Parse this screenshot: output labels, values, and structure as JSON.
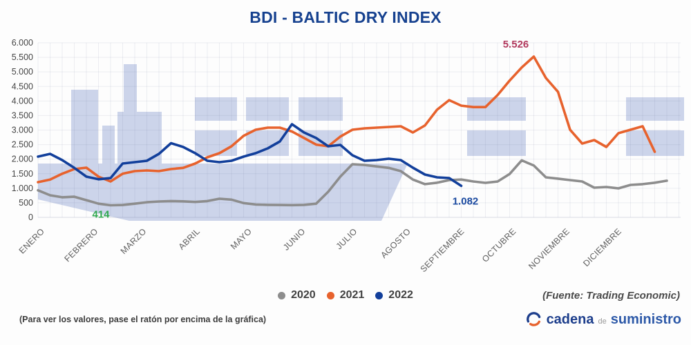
{
  "header": {
    "title": "BDI - BALTIC DRY INDEX"
  },
  "chart_data": {
    "type": "line",
    "title": "BDI - BALTIC DRY INDEX",
    "x_axis": {
      "unit": "weeks",
      "months": [
        "ENERO",
        "FEBRERO",
        "MARZO",
        "ABRIL",
        "MAYO",
        "JUNIO",
        "JULIO",
        "AGOSTO",
        "SEPTIEMBRE",
        "OCTUBRE",
        "NOVIEMBRE",
        "DICIEMBRE"
      ]
    },
    "y_axis": {
      "min": 0,
      "max": 6000,
      "tick_step": 500,
      "tick_labels": [
        "0",
        "500",
        "1.000",
        "1.500",
        "2.000",
        "2.500",
        "3.000",
        "3.500",
        "4.000",
        "4.500",
        "5.000",
        "5.500",
        "6.000"
      ]
    },
    "grid": true,
    "legend_position": "bottom-center",
    "series": [
      {
        "name": "2020",
        "color": "#8d8d8d",
        "start_week": 0,
        "values": [
          930,
          760,
          690,
          710,
          590,
          470,
          414,
          425,
          470,
          520,
          545,
          560,
          550,
          530,
          560,
          640,
          610,
          490,
          440,
          430,
          425,
          420,
          430,
          470,
          880,
          1400,
          1826,
          1800,
          1750,
          1700,
          1590,
          1300,
          1140,
          1190,
          1280,
          1300,
          1233,
          1186,
          1230,
          1490,
          1960,
          1780,
          1375,
          1330,
          1280,
          1233,
          1020,
          1044,
          996,
          1114,
          1140,
          1190,
          1260
        ]
      },
      {
        "name": "2021",
        "color": "#e7622d",
        "start_week": 0,
        "values": [
          1209,
          1300,
          1500,
          1660,
          1707,
          1400,
          1233,
          1500,
          1589,
          1613,
          1589,
          1660,
          1700,
          1850,
          2063,
          2205,
          2442,
          2800,
          3011,
          3082,
          3082,
          2950,
          2727,
          2500,
          2442,
          2774,
          3011,
          3060,
          3082,
          3106,
          3130,
          2917,
          3160,
          3700,
          4030,
          3840,
          3790,
          3790,
          4200,
          4700,
          5150,
          5526,
          4790,
          4315,
          3010,
          2537,
          2656,
          2418,
          2893,
          3011,
          3130,
          2253
        ]
      },
      {
        "name": "2022",
        "color": "#123f9b",
        "start_week": 0,
        "values": [
          2087,
          2182,
          1968,
          1700,
          1400,
          1310,
          1350,
          1850,
          1898,
          1944,
          2182,
          2550,
          2418,
          2205,
          1944,
          1898,
          1944,
          2086,
          2205,
          2371,
          2608,
          3201,
          2917,
          2727,
          2442,
          2490,
          2134,
          1944,
          1968,
          2016,
          1968,
          1707,
          1470,
          1375,
          1352,
          1082
        ]
      }
    ],
    "annotations": [
      {
        "text": "5.526",
        "value": 5526,
        "series": "2021",
        "anchor": "max",
        "color": "#b23a5e"
      },
      {
        "text": "414",
        "value": 414,
        "series": "2020",
        "anchor": "min",
        "color": "#2fa84e"
      },
      {
        "text": "1.082",
        "value": 1082,
        "series": "2022",
        "anchor": "last",
        "color": "#1b4aa0"
      }
    ]
  },
  "footer": {
    "source_note": "(Fuente: Trading Economic)",
    "hover_note": "(Para ver los valores, pase el ratón por encima de la gráfica)",
    "logo": {
      "word1": "cadena",
      "word2": "de",
      "word3": "suministro"
    }
  },
  "colors": {
    "title": "#16418f",
    "watermark": "#ccd4ea",
    "axis_text": "#5f5f5f",
    "y_axis_text": "#444444",
    "gridline": "rgba(90,100,140,0.10)",
    "zero_line": "rgba(90,100,140,0.22)"
  }
}
